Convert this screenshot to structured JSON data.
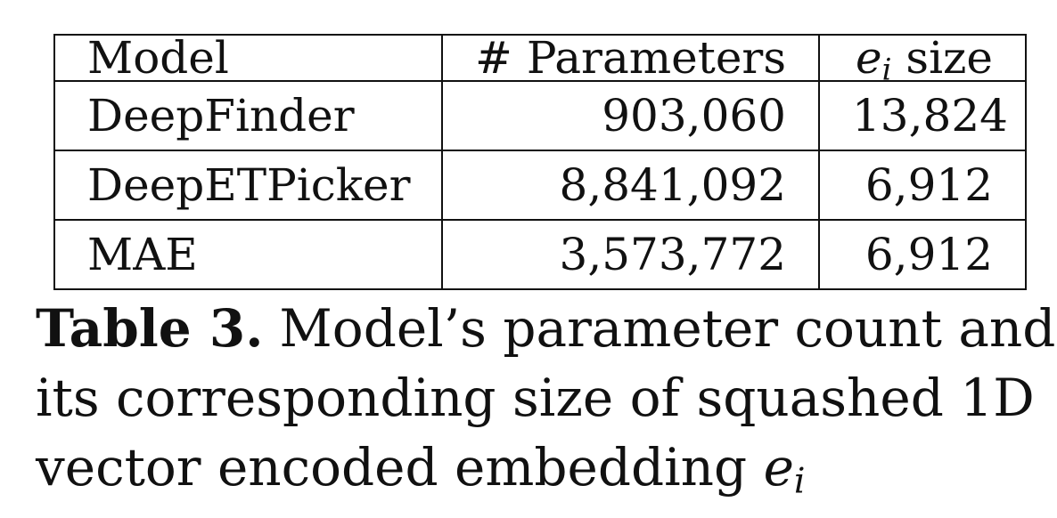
{
  "table": {
    "headers": {
      "model": "Model",
      "parameters": "# Parameters",
      "size_symbol": "e",
      "size_subscript": "i",
      "size_word": "size"
    },
    "rows": [
      {
        "model": "DeepFinder",
        "parameters": "903,060",
        "size": "13,824"
      },
      {
        "model": "DeepETPicker",
        "parameters": "8,841,092",
        "size": "6,912"
      },
      {
        "model": "MAE",
        "parameters": "3,573,772",
        "size": "6,912"
      }
    ]
  },
  "caption": {
    "label": "Table 3.",
    "line1": "Model’s parameter count and",
    "line2": "its corresponding size of squashed 1D",
    "line3_prefix": "vector encoded embedding",
    "symbol": "e",
    "subscript": "i"
  }
}
